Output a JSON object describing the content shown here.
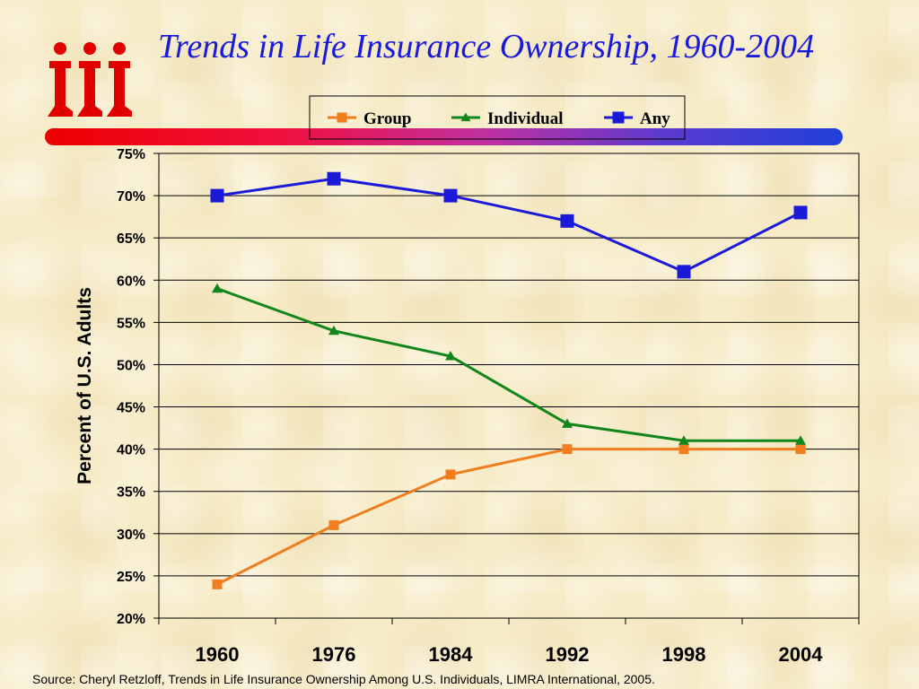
{
  "title": "Trends in Life Insurance Ownership, 1960-2004",
  "source": "Source: Cheryl Retzloff, Trends in Life Insurance Ownership Among U.S. Individuals, LIMRA International, 2005.",
  "logo": {
    "icon": "iii-logo",
    "color": "#e00000"
  },
  "colors": {
    "group": "#f07d1e",
    "individual": "#13861b",
    "any": "#1a1ad8",
    "title": "#1a1adc"
  },
  "chart_data": {
    "type": "line",
    "title": "",
    "xlabel": "",
    "ylabel": "Percent of U.S. Adults",
    "categories": [
      "1960",
      "1976",
      "1984",
      "1992",
      "1998",
      "2004"
    ],
    "ylim": [
      20,
      75
    ],
    "ytick_labels": [
      "75%",
      "70%",
      "65%",
      "60%",
      "55%",
      "50%",
      "45%",
      "40%",
      "35%",
      "30%",
      "25%",
      "20%"
    ],
    "grid": true,
    "legend_position": "top",
    "series": [
      {
        "name": "Group",
        "marker": "square",
        "values": [
          24,
          31,
          37,
          40,
          40,
          40
        ]
      },
      {
        "name": "Individual",
        "marker": "triangle",
        "values": [
          59,
          54,
          51,
          43,
          41,
          41
        ]
      },
      {
        "name": "Any",
        "marker": "square",
        "values": [
          70,
          72,
          70,
          67,
          61,
          68
        ]
      }
    ]
  }
}
